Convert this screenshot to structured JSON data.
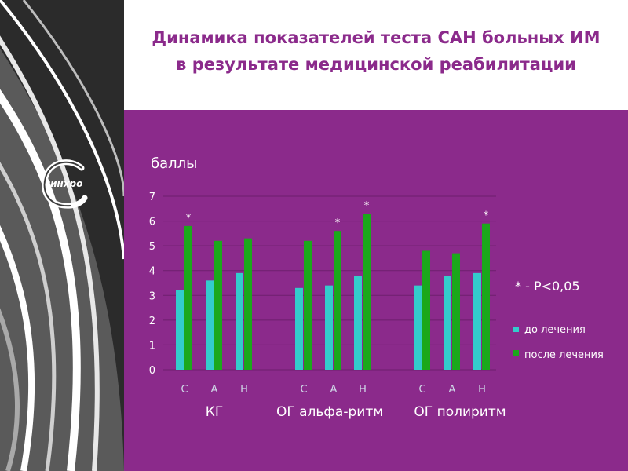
{
  "title": {
    "line1": "Динамика показателей теста САН больных ИМ",
    "line2": "в результате медицинской реабилитации"
  },
  "logo": {
    "text": "синхро",
    "icon": "synchro-c-logo"
  },
  "significance_note": "* - Р<0,05",
  "colors": {
    "title": "#8b2a8b",
    "panel": "#8b2a8b",
    "before": "#33cccc",
    "after": "#1ba81b",
    "axis_text": "#ffffff"
  },
  "chart_data": {
    "type": "bar",
    "ylabel": "баллы",
    "ylim": [
      0,
      7
    ],
    "yticks": [
      0,
      1,
      2,
      3,
      4,
      5,
      6,
      7
    ],
    "grid": true,
    "legend_position": "right",
    "groups": [
      "КГ",
      "ОГ альфа-ритм",
      "ОГ полиритм"
    ],
    "categories": [
      "С",
      "А",
      "Н",
      "С",
      "А",
      "Н",
      "С",
      "А",
      "Н"
    ],
    "series": [
      {
        "name": "до лечения",
        "values": [
          3.2,
          3.6,
          3.9,
          3.3,
          3.4,
          3.8,
          3.4,
          3.8,
          3.9
        ]
      },
      {
        "name": "после лечения",
        "values": [
          5.8,
          5.2,
          5.3,
          5.2,
          5.6,
          6.3,
          4.8,
          4.7,
          5.9
        ]
      }
    ],
    "significance_marker": "*",
    "significant": [
      true,
      false,
      false,
      false,
      true,
      true,
      false,
      false,
      true
    ]
  }
}
